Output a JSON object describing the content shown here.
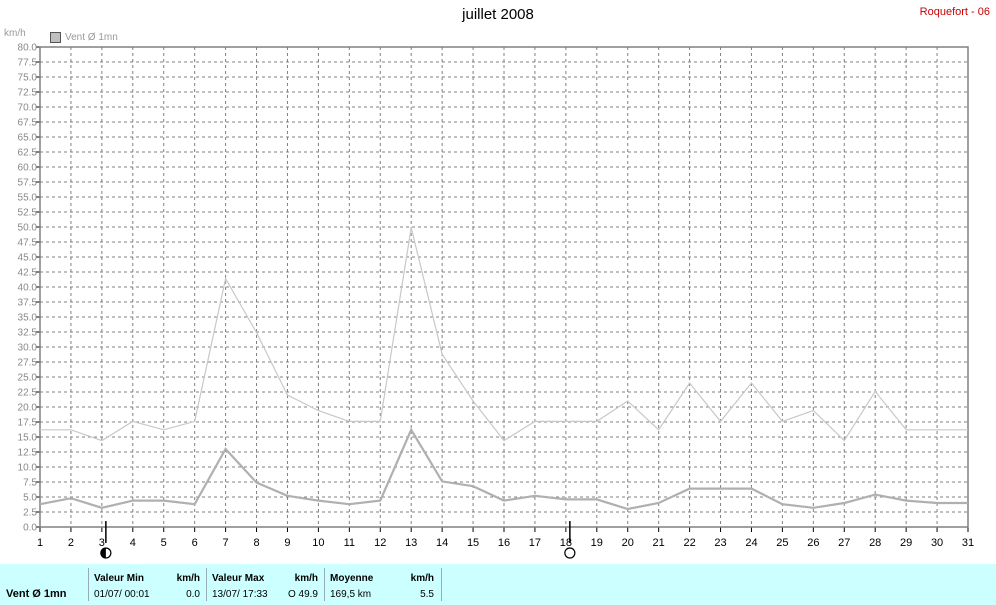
{
  "header": {
    "title": "juillet 2008",
    "station": "Roquefort - 06"
  },
  "legend": {
    "label": "Vent Ø 1mn",
    "swatch_color": "#c0c0c0"
  },
  "colors": {
    "series_max": "#c8c8c8",
    "series_mean": "#b0b0b0",
    "grid": "#808080",
    "frame": "#808080"
  },
  "chart_data": {
    "type": "line",
    "ylabel": "km/h",
    "ylim": [
      0,
      80
    ],
    "ytick_step": 2.5,
    "x": [
      1,
      2,
      3,
      4,
      5,
      6,
      7,
      8,
      9,
      10,
      11,
      12,
      13,
      14,
      15,
      16,
      17,
      18,
      19,
      20,
      21,
      22,
      23,
      24,
      25,
      26,
      27,
      28,
      29,
      30,
      31
    ],
    "xlim": [
      1,
      31
    ],
    "grid": true,
    "legend_position": "top-left",
    "series": [
      {
        "name": "",
        "role": "max",
        "values": [
          16.2,
          16.2,
          14.4,
          17.6,
          16.2,
          17.6,
          41.4,
          32.4,
          22.0,
          19.4,
          17.6,
          17.6,
          49.9,
          28.8,
          21.0,
          14.4,
          17.6,
          17.6,
          17.6,
          21.0,
          16.2,
          24.0,
          17.6,
          24.0,
          17.6,
          19.4,
          14.4,
          22.6,
          16.2,
          16.2,
          16.2
        ]
      },
      {
        "name": "Vent Ø 1mn",
        "role": "mean",
        "values": [
          3.8,
          4.8,
          3.2,
          4.4,
          4.4,
          3.8,
          13.0,
          7.4,
          5.2,
          4.4,
          3.8,
          4.4,
          16.2,
          7.6,
          6.8,
          4.4,
          5.2,
          4.6,
          4.6,
          3.0,
          4.0,
          6.4,
          6.4,
          6.4,
          3.8,
          3.2,
          4.0,
          5.4,
          4.4,
          4.0,
          4.0
        ]
      }
    ],
    "moon_phases": [
      {
        "day": 3,
        "phase": "last-quarter"
      },
      {
        "day": 18,
        "phase": "full-moon"
      }
    ]
  },
  "footer": {
    "series_label": "Vent Ø 1mn",
    "min": {
      "header": "Valeur Min",
      "unit": "km/h",
      "date": "01/07/  00:01",
      "value": "0.0"
    },
    "max": {
      "header": "Valeur Max",
      "unit": "km/h",
      "date": "13/07/  17:33",
      "value": "O 49.9"
    },
    "mean": {
      "header": "Moyenne",
      "unit": "km/h",
      "date": "169,5 km",
      "value": "5.5"
    }
  }
}
